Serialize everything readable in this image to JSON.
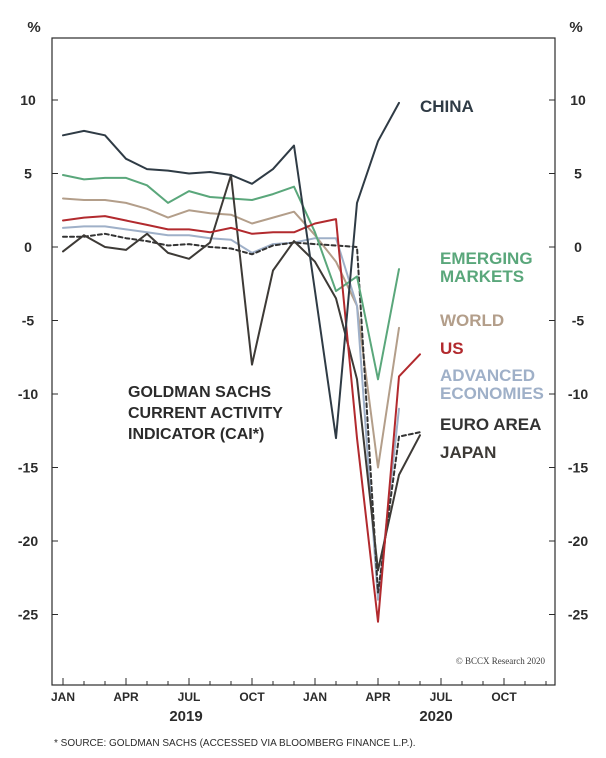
{
  "chart_data": {
    "type": "line",
    "title_lines": [
      "GOLDMAN SACHS",
      "CURRENT ACTIVITY",
      "INDICATOR (CAI*)"
    ],
    "unit_left": "%",
    "unit_right": "%",
    "ylim": [
      -30,
      14
    ],
    "yticks": [
      10,
      5,
      0,
      -5,
      -10,
      -15,
      -20,
      -25
    ],
    "ytick_labels": [
      "10",
      "5",
      "0",
      "-5",
      "-10",
      "-15",
      "-20",
      "-25"
    ],
    "xticks": [
      "JAN",
      "APR",
      "JUL",
      "OCT",
      "JAN",
      "APR",
      "JUL",
      "OCT"
    ],
    "year_labels": [
      "2019",
      "2020"
    ],
    "credit": "© BCCX Research 2020",
    "source": "* SOURCE: GOLDMAN SACHS (ACCESSED VIA BLOOMBERG FINANCE L.P.).",
    "x": [
      "2019-01",
      "2019-02",
      "2019-03",
      "2019-04",
      "2019-05",
      "2019-06",
      "2019-07",
      "2019-08",
      "2019-09",
      "2019-10",
      "2019-11",
      "2019-12",
      "2020-01",
      "2020-02",
      "2020-03",
      "2020-04",
      "2020-05",
      "2020-06"
    ],
    "series": [
      {
        "name": "CHINA",
        "color": "#2f3b45",
        "dash": "",
        "label_lines": [
          "CHINA"
        ],
        "values": [
          7.6,
          7.9,
          7.6,
          6.0,
          5.3,
          5.2,
          5.0,
          5.1,
          4.9,
          4.3,
          5.3,
          6.9,
          -3.0,
          -13.0,
          3.0,
          7.2,
          9.8,
          null
        ]
      },
      {
        "name": "EMERGING MARKETS",
        "color": "#5aa77b",
        "dash": "",
        "label_lines": [
          "EMERGING",
          "MARKETS"
        ],
        "values": [
          4.9,
          4.6,
          4.7,
          4.7,
          4.2,
          3.0,
          3.8,
          3.4,
          3.3,
          3.2,
          3.6,
          4.1,
          1.0,
          -3.0,
          -2.0,
          -9.0,
          -1.5,
          null
        ]
      },
      {
        "name": "WORLD",
        "color": "#b39e8a",
        "dash": "",
        "label_lines": [
          "WORLD"
        ],
        "values": [
          3.3,
          3.2,
          3.2,
          3.0,
          2.6,
          2.0,
          2.5,
          2.3,
          2.2,
          1.6,
          2.0,
          2.4,
          0.8,
          -1.0,
          -4.0,
          -15.0,
          -5.5,
          null
        ]
      },
      {
        "name": "US",
        "color": "#b22a2e",
        "dash": "",
        "label_lines": [
          "US"
        ],
        "values": [
          1.8,
          2.0,
          2.1,
          1.8,
          1.5,
          1.2,
          1.2,
          1.0,
          1.3,
          0.9,
          1.0,
          1.0,
          1.6,
          1.9,
          -13.0,
          -25.5,
          -8.8,
          -7.3
        ]
      },
      {
        "name": "ADVANCED ECONOMIES",
        "color": "#9fb0c8",
        "dash": "",
        "label_lines": [
          "ADVANCED",
          "ECONOMIES"
        ],
        "values": [
          1.3,
          1.4,
          1.4,
          1.2,
          1.0,
          0.8,
          0.8,
          0.6,
          0.5,
          -0.4,
          0.2,
          0.3,
          0.6,
          0.6,
          -4.0,
          -24.0,
          -11.0,
          null
        ]
      },
      {
        "name": "EURO AREA",
        "color": "#333333",
        "dash": "4,3",
        "label_lines": [
          "EURO AREA"
        ],
        "values": [
          0.7,
          0.7,
          0.9,
          0.6,
          0.4,
          0.1,
          0.2,
          0.0,
          -0.1,
          -0.5,
          0.1,
          0.3,
          0.2,
          0.1,
          0.0,
          -23.5,
          -12.9,
          -12.6
        ]
      },
      {
        "name": "JAPAN",
        "color": "#3d3a36",
        "dash": "",
        "label_lines": [
          "JAPAN"
        ],
        "values": [
          -0.3,
          0.8,
          0.0,
          -0.2,
          0.9,
          -0.4,
          -0.8,
          0.3,
          4.9,
          -8.0,
          -1.6,
          0.4,
          -1.0,
          -3.5,
          -9.0,
          -22.0,
          -15.5,
          -12.8
        ]
      }
    ]
  }
}
